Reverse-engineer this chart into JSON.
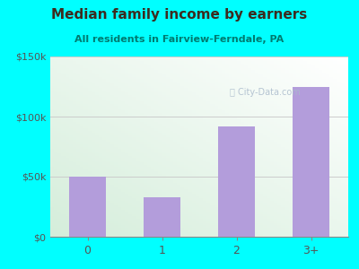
{
  "title": "Median family income by earners",
  "subtitle": "All residents in Fairview-Ferndale, PA",
  "categories": [
    "0",
    "1",
    "2",
    "3+"
  ],
  "values": [
    50000,
    33000,
    92000,
    125000
  ],
  "bar_color": "#b39ddb",
  "outer_bg": "#00FFFF",
  "chart_panel_bg": "#f8fff8",
  "inner_bg_topleft": "#d4edda",
  "inner_bg_bottomright": "#ffffff",
  "title_color": "#3d2b1f",
  "subtitle_color": "#007b70",
  "tick_color": "#555555",
  "grid_color": "#cccccc",
  "ylim": [
    0,
    150000
  ],
  "yticks": [
    0,
    50000,
    100000,
    150000
  ],
  "ytick_labels": [
    "$0",
    "$50k",
    "$100k",
    "$150k"
  ],
  "watermark": "City-Data.com",
  "watermark_color": "#aabbcc",
  "title_fontsize": 11,
  "subtitle_fontsize": 8
}
